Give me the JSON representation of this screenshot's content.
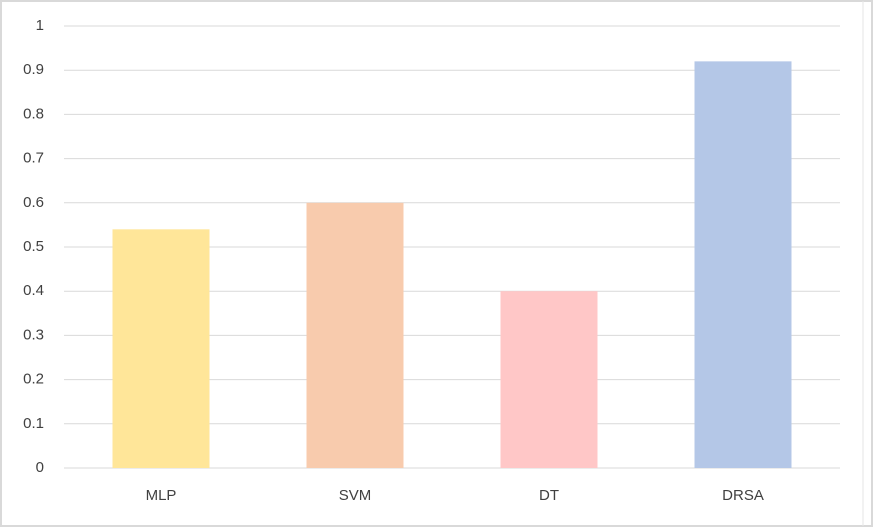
{
  "chart_data": {
    "type": "bar",
    "categories": [
      "MLP",
      "SVM",
      "DT",
      "DRSA"
    ],
    "values": [
      0.54,
      0.6,
      0.4,
      0.92
    ],
    "colors": [
      "#ffe699",
      "#f8cbad",
      "#ffc7c7",
      "#b4c7e7"
    ],
    "ylim": [
      0,
      1
    ],
    "yticks": [
      0,
      0.1,
      0.2,
      0.3,
      0.4,
      0.5,
      0.6,
      0.7,
      0.8,
      0.9,
      1
    ],
    "grid": true
  }
}
